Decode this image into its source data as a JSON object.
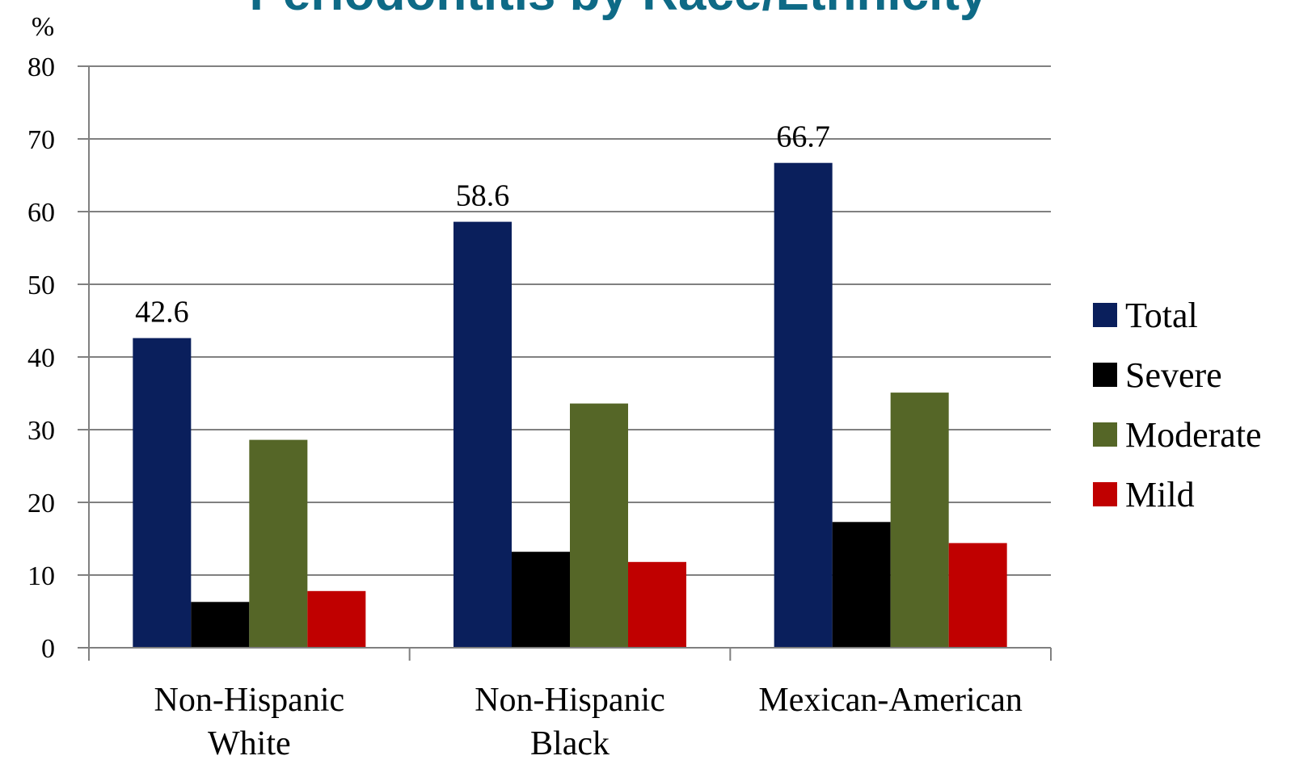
{
  "chart_data": {
    "type": "bar",
    "title": "Periodontitis by Race/Ethnicity",
    "ylabel": "%",
    "ylim": [
      0,
      80
    ],
    "yticks": [
      "0",
      "10",
      "20",
      "30",
      "40",
      "50",
      "60",
      "70",
      "80"
    ],
    "grid": true,
    "legend_position": "right",
    "categories": [
      [
        "Non-Hispanic",
        "White"
      ],
      [
        "Non-Hispanic",
        "Black"
      ],
      [
        "Mexican-American"
      ]
    ],
    "series": [
      {
        "name": "Total",
        "color": "#0a1f5c",
        "values": [
          42.6,
          58.6,
          66.7
        ],
        "labels": [
          "42.6",
          "58.6",
          "66.7"
        ]
      },
      {
        "name": "Severe",
        "color": "#000000",
        "values": [
          6.3,
          13.2,
          17.3
        ]
      },
      {
        "name": "Moderate",
        "color": "#556627",
        "values": [
          28.6,
          33.6,
          35.1
        ]
      },
      {
        "name": "Mild",
        "color": "#c00000",
        "values": [
          7.8,
          11.8,
          14.4
        ]
      }
    ]
  }
}
